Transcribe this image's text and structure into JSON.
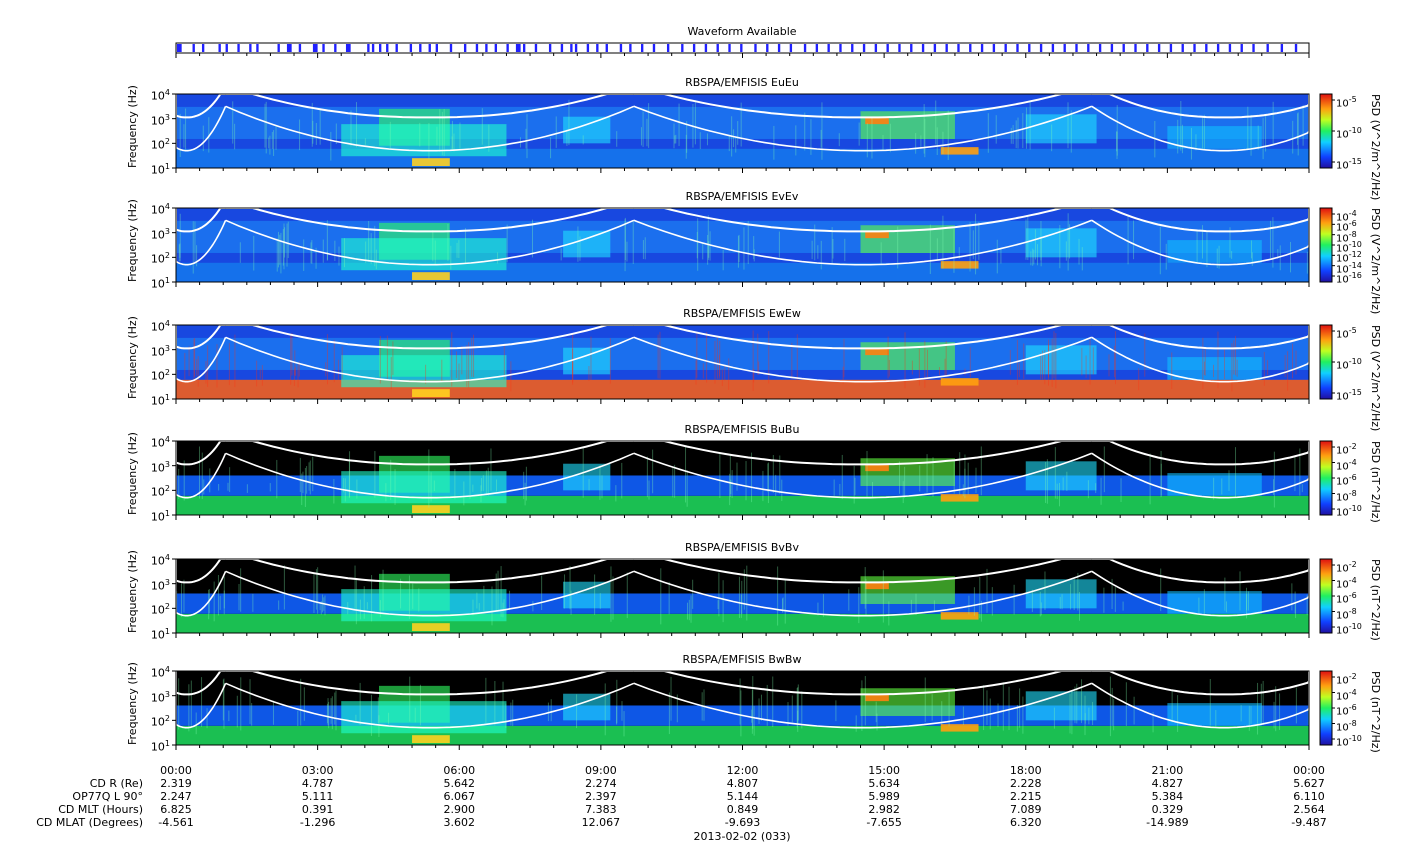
{
  "chart_data": {
    "type": "heatmap",
    "waveform": {
      "title": "Waveform Available",
      "segments_hours": [
        [
          0.02,
          0.12
        ],
        [
          0.35,
          0.4
        ],
        [
          0.55,
          0.6
        ],
        [
          0.9,
          0.95
        ],
        [
          1.05,
          1.1
        ],
        [
          1.3,
          1.35
        ],
        [
          1.55,
          1.6
        ],
        [
          1.7,
          1.75
        ],
        [
          2.15,
          2.2
        ],
        [
          2.35,
          2.45
        ],
        [
          2.6,
          2.65
        ],
        [
          2.9,
          3.0
        ],
        [
          3.1,
          3.15
        ],
        [
          3.35,
          3.4
        ],
        [
          3.6,
          3.7
        ],
        [
          4.05,
          4.1
        ],
        [
          4.15,
          4.2
        ],
        [
          4.3,
          4.35
        ],
        [
          4.45,
          4.5
        ],
        [
          4.65,
          4.7
        ],
        [
          4.95,
          5.0
        ],
        [
          5.15,
          5.2
        ],
        [
          5.35,
          5.4
        ],
        [
          5.5,
          5.55
        ],
        [
          5.8,
          5.85
        ],
        [
          6.1,
          6.15
        ],
        [
          6.35,
          6.4
        ],
        [
          6.55,
          6.6
        ],
        [
          6.75,
          6.8
        ],
        [
          7.0,
          7.05
        ],
        [
          7.2,
          7.3
        ],
        [
          7.35,
          7.4
        ],
        [
          7.6,
          7.65
        ],
        [
          7.9,
          7.95
        ],
        [
          8.15,
          8.2
        ],
        [
          8.35,
          8.4
        ],
        [
          8.45,
          8.5
        ],
        [
          8.7,
          8.75
        ],
        [
          8.9,
          8.95
        ],
        [
          9.1,
          9.15
        ],
        [
          9.4,
          9.45
        ],
        [
          9.6,
          9.65
        ],
        [
          9.85,
          9.9
        ],
        [
          10.1,
          10.15
        ],
        [
          10.4,
          10.45
        ],
        [
          10.7,
          10.75
        ],
        [
          10.95,
          11.0
        ],
        [
          11.2,
          11.25
        ],
        [
          11.45,
          11.5
        ],
        [
          11.7,
          11.75
        ],
        [
          11.95,
          12.0
        ],
        [
          12.25,
          12.3
        ],
        [
          12.5,
          12.55
        ],
        [
          12.75,
          12.8
        ],
        [
          13.0,
          13.05
        ],
        [
          13.3,
          13.35
        ],
        [
          13.55,
          13.6
        ],
        [
          13.8,
          13.85
        ],
        [
          14.05,
          14.1
        ],
        [
          14.3,
          14.35
        ],
        [
          14.55,
          14.6
        ],
        [
          14.8,
          14.85
        ],
        [
          15.05,
          15.1
        ],
        [
          15.3,
          15.35
        ],
        [
          15.55,
          15.6
        ],
        [
          15.8,
          15.85
        ],
        [
          16.05,
          16.1
        ],
        [
          16.3,
          16.35
        ],
        [
          16.55,
          16.6
        ],
        [
          16.8,
          16.85
        ],
        [
          17.05,
          17.1
        ],
        [
          17.3,
          17.35
        ],
        [
          17.55,
          17.6
        ],
        [
          17.8,
          17.85
        ],
        [
          18.05,
          18.1
        ],
        [
          18.3,
          18.35
        ],
        [
          18.55,
          18.6
        ],
        [
          18.8,
          18.85
        ],
        [
          19.05,
          19.1
        ],
        [
          19.3,
          19.35
        ],
        [
          19.55,
          19.6
        ],
        [
          19.8,
          19.85
        ],
        [
          20.05,
          20.1
        ],
        [
          20.3,
          20.35
        ],
        [
          20.55,
          20.6
        ],
        [
          20.8,
          20.85
        ],
        [
          21.05,
          21.1
        ],
        [
          21.3,
          21.35
        ],
        [
          21.55,
          21.6
        ],
        [
          21.8,
          21.85
        ],
        [
          22.05,
          22.1
        ],
        [
          22.3,
          22.35
        ],
        [
          22.55,
          22.6
        ],
        [
          22.8,
          22.85
        ],
        [
          23.1,
          23.15
        ],
        [
          23.4,
          23.45
        ],
        [
          23.7,
          23.75
        ]
      ]
    },
    "x_range_hours": [
      0,
      24
    ],
    "x_ticks": [
      "00:00",
      "03:00",
      "06:00",
      "09:00",
      "12:00",
      "15:00",
      "18:00",
      "21:00",
      "00:00"
    ],
    "date_label": "2013-02-02 (033)",
    "y_range_hz": [
      10,
      10000
    ],
    "y_scale": "log",
    "ylabel": "Frequency (Hz)",
    "panels": [
      {
        "title": "RBSPA/EMFISIS  EuEu",
        "cb_label": "PSD (V^2/m^2/Hz)",
        "cb_ticks": [
          "10<sup>-5</sup>",
          "10<sup>-10</sup>",
          "10<sup>-15</sup>"
        ],
        "style": "e"
      },
      {
        "title": "RBSPA/EMFISIS  EvEv",
        "cb_label": "PSD (V^2/m^2/Hz)",
        "cb_ticks": [
          "10<sup>-4</sup>",
          "10<sup>-6</sup>",
          "10<sup>-8</sup>",
          "10<sup>-10</sup>",
          "10<sup>-12</sup>",
          "10<sup>-14</sup>",
          "10<sup>-16</sup>"
        ],
        "style": "e"
      },
      {
        "title": "RBSPA/EMFISIS  EwEw",
        "cb_label": "PSD (V^2/m^2/Hz)",
        "cb_ticks": [
          "10<sup>-5</sup>",
          "10<sup>-10</sup>",
          "10<sup>-15</sup>"
        ],
        "style": "ew"
      },
      {
        "title": "RBSPA/EMFISIS  BuBu",
        "cb_label": "PSD (nT^2/Hz)",
        "cb_ticks": [
          "10<sup>-2</sup>",
          "10<sup>-4</sup>",
          "10<sup>-6</sup>",
          "10<sup>-8</sup>",
          "10<sup>-10</sup>"
        ],
        "style": "b"
      },
      {
        "title": "RBSPA/EMFISIS  BvBv",
        "cb_label": "PSD (nT^2/Hz)",
        "cb_ticks": [
          "10<sup>-2</sup>",
          "10<sup>-4</sup>",
          "10<sup>-6</sup>",
          "10<sup>-8</sup>",
          "10<sup>-10</sup>"
        ],
        "style": "b"
      },
      {
        "title": "RBSPA/EMFISIS  BwBw",
        "cb_label": "PSD (nT^2/Hz)",
        "cb_ticks": [
          "10<sup>-2</sup>",
          "10<sup>-4</sup>",
          "10<sup>-6</sup>",
          "10<sup>-8</sup>",
          "10<sup>-10</sup>"
        ],
        "style": "b"
      }
    ],
    "white_curves_note_units": "Hz",
    "ephemeris": {
      "labels": [
        "CD R (Re)",
        "OP77Q L 90°",
        "CD MLT (Hours)",
        "CD MLAT (Degrees)"
      ],
      "rows": [
        [
          "2.319",
          "4.787",
          "5.642",
          "2.274",
          "4.807",
          "5.634",
          "2.228",
          "4.827",
          "5.627"
        ],
        [
          "2.247",
          "5.111",
          "6.067",
          "2.397",
          "5.144",
          "5.989",
          "2.215",
          "5.384",
          "6.110"
        ],
        [
          "6.825",
          "0.391",
          "2.900",
          "7.383",
          "0.849",
          "2.982",
          "7.089",
          "0.329",
          "2.564"
        ],
        [
          "-4.561",
          "-1.296",
          "3.602",
          "12.067",
          "-9.693",
          "-7.655",
          "6.320",
          "-14.989",
          "-9.487"
        ]
      ]
    },
    "colors": {
      "e_bg": "#1848e0",
      "b_bg": "#000000",
      "curve": "#ffffff",
      "waveform": "#2020ff"
    }
  }
}
